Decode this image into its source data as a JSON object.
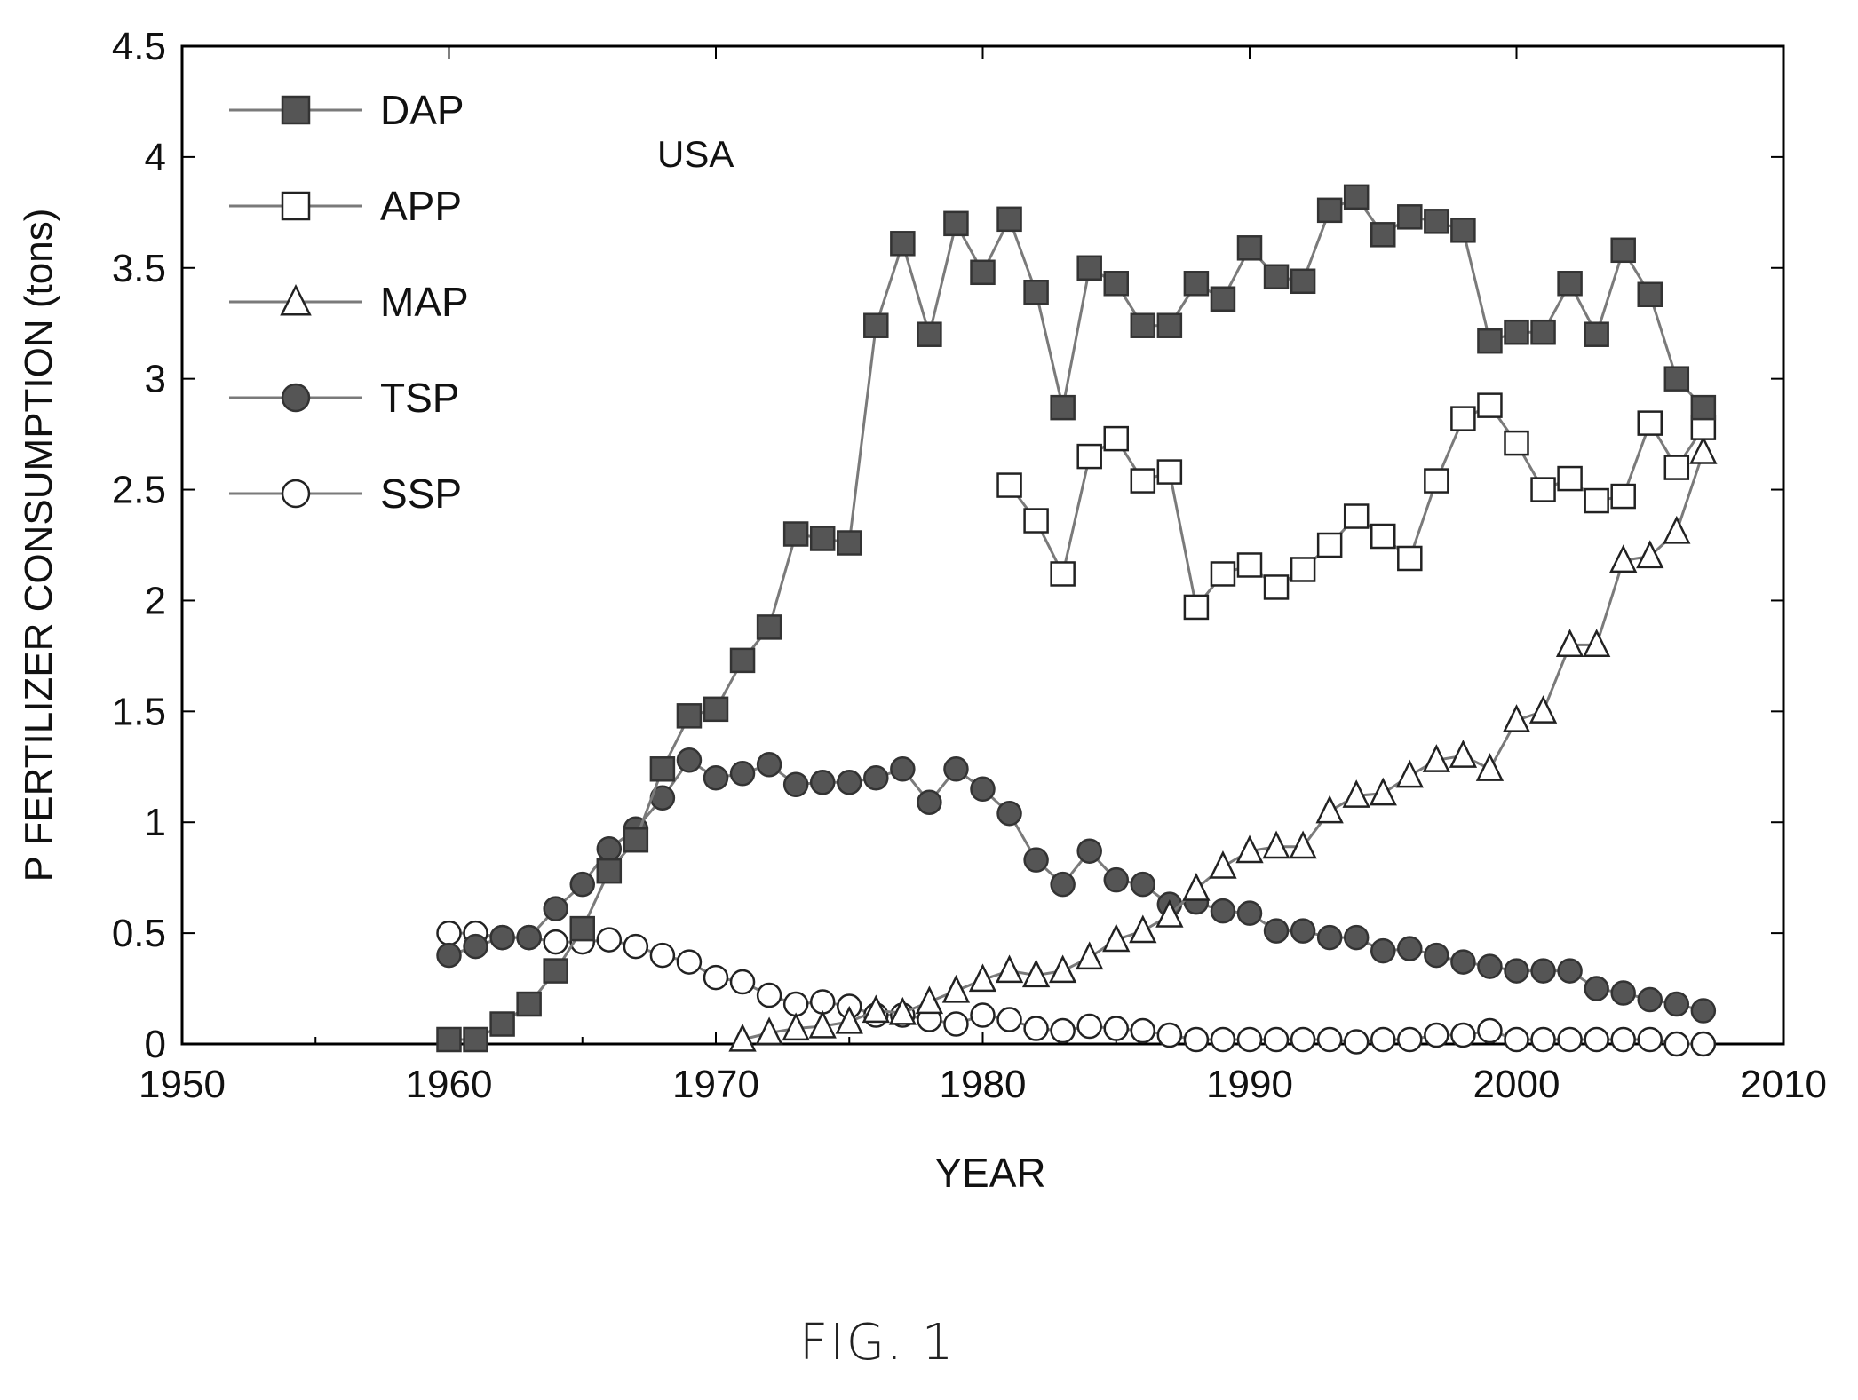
{
  "figure": {
    "caption": "FIG. 1"
  },
  "chart_data": {
    "type": "line",
    "annotation": "USA",
    "xlabel": "YEAR",
    "ylabel": "P FERTILIZER CONSUMPTION (tons)",
    "xlim": [
      1950,
      2010
    ],
    "ylim": [
      0,
      4.5
    ],
    "xticks": [
      1950,
      1960,
      1970,
      1980,
      1990,
      2000,
      2010
    ],
    "yticks": [
      0,
      0.5,
      1,
      1.5,
      2,
      2.5,
      3,
      3.5,
      4,
      4.5
    ],
    "ytick_labels": [
      "0",
      "0.5",
      "1",
      "1.5",
      "2",
      "2.5",
      "3",
      "3.5",
      "4",
      "4.5"
    ],
    "grid": false,
    "legend_position": "top-left",
    "colors": {
      "line": "#7a7a7a",
      "filled_marker": "#555555",
      "hollow_marker": "#ffffff",
      "axis": "#000000"
    },
    "series": [
      {
        "name": "DAP",
        "marker": "square",
        "filled": true,
        "x": [
          1960,
          1961,
          1962,
          1963,
          1964,
          1965,
          1966,
          1967,
          1968,
          1969,
          1970,
          1971,
          1972,
          1973,
          1974,
          1975,
          1976,
          1977,
          1978,
          1979,
          1980,
          1981,
          1982,
          1983,
          1984,
          1985,
          1986,
          1987,
          1988,
          1989,
          1990,
          1991,
          1992,
          1993,
          1994,
          1995,
          1996,
          1997,
          1998,
          1999,
          2000,
          2001,
          2002,
          2003,
          2004,
          2005,
          2006,
          2007
        ],
        "y": [
          0.02,
          0.02,
          0.09,
          0.18,
          0.33,
          0.52,
          0.78,
          0.92,
          1.24,
          1.48,
          1.51,
          1.73,
          1.88,
          2.3,
          2.28,
          2.26,
          3.24,
          3.61,
          3.2,
          3.7,
          3.48,
          3.72,
          3.39,
          2.87,
          3.5,
          3.43,
          3.24,
          3.24,
          3.43,
          3.36,
          3.59,
          3.46,
          3.44,
          3.76,
          3.82,
          3.65,
          3.73,
          3.71,
          3.67,
          3.17,
          3.21,
          3.21,
          3.43,
          3.2,
          3.58,
          3.38,
          3.0,
          2.87
        ]
      },
      {
        "name": "APP",
        "marker": "square",
        "filled": false,
        "x": [
          1981,
          1982,
          1983,
          1984,
          1985,
          1986,
          1987,
          1988,
          1989,
          1990,
          1991,
          1992,
          1993,
          1994,
          1995,
          1996,
          1997,
          1998,
          1999,
          2000,
          2001,
          2002,
          2003,
          2004,
          2005,
          2006,
          2007
        ],
        "y": [
          2.52,
          2.36,
          2.12,
          2.65,
          2.73,
          2.54,
          2.58,
          1.97,
          2.12,
          2.16,
          2.06,
          2.14,
          2.25,
          2.38,
          2.29,
          2.19,
          2.54,
          2.82,
          2.88,
          2.71,
          2.5,
          2.55,
          2.45,
          2.47,
          2.8,
          2.6,
          2.78
        ]
      },
      {
        "name": "MAP",
        "marker": "triangle",
        "filled": false,
        "x": [
          1971,
          1972,
          1973,
          1974,
          1975,
          1976,
          1977,
          1978,
          1979,
          1980,
          1981,
          1982,
          1983,
          1984,
          1985,
          1986,
          1987,
          1988,
          1989,
          1990,
          1991,
          1992,
          1993,
          1994,
          1995,
          1996,
          1997,
          1998,
          1999,
          2000,
          2001,
          2002,
          2003,
          2004,
          2005,
          2006,
          2007
        ],
        "y": [
          0.02,
          0.05,
          0.07,
          0.08,
          0.1,
          0.15,
          0.14,
          0.19,
          0.24,
          0.29,
          0.33,
          0.31,
          0.33,
          0.39,
          0.47,
          0.51,
          0.58,
          0.7,
          0.8,
          0.87,
          0.89,
          0.89,
          1.05,
          1.12,
          1.13,
          1.21,
          1.28,
          1.3,
          1.24,
          1.46,
          1.5,
          1.8,
          1.8,
          2.18,
          2.2,
          2.31,
          2.67
        ]
      },
      {
        "name": "TSP",
        "marker": "circle",
        "filled": true,
        "x": [
          1960,
          1961,
          1962,
          1963,
          1964,
          1965,
          1966,
          1967,
          1968,
          1969,
          1970,
          1971,
          1972,
          1973,
          1974,
          1975,
          1976,
          1977,
          1978,
          1979,
          1980,
          1981,
          1982,
          1983,
          1984,
          1985,
          1986,
          1987,
          1988,
          1989,
          1990,
          1991,
          1992,
          1993,
          1994,
          1995,
          1996,
          1997,
          1998,
          1999,
          2000,
          2001,
          2002,
          2003,
          2004,
          2005,
          2006,
          2007
        ],
        "y": [
          0.4,
          0.44,
          0.48,
          0.48,
          0.61,
          0.72,
          0.88,
          0.97,
          1.11,
          1.28,
          1.2,
          1.22,
          1.26,
          1.17,
          1.18,
          1.18,
          1.2,
          1.24,
          1.09,
          1.24,
          1.15,
          1.04,
          0.83,
          0.72,
          0.87,
          0.74,
          0.72,
          0.63,
          0.64,
          0.6,
          0.59,
          0.51,
          0.51,
          0.48,
          0.48,
          0.42,
          0.43,
          0.4,
          0.37,
          0.35,
          0.33,
          0.33,
          0.33,
          0.25,
          0.23,
          0.2,
          0.18,
          0.15
        ]
      },
      {
        "name": "SSP",
        "marker": "circle",
        "filled": false,
        "x": [
          1960,
          1961,
          1962,
          1963,
          1964,
          1965,
          1966,
          1967,
          1968,
          1969,
          1970,
          1971,
          1972,
          1973,
          1974,
          1975,
          1976,
          1977,
          1978,
          1979,
          1980,
          1981,
          1982,
          1983,
          1984,
          1985,
          1986,
          1987,
          1988,
          1989,
          1990,
          1991,
          1992,
          1993,
          1994,
          1995,
          1996,
          1997,
          1998,
          1999,
          2000,
          2001,
          2002,
          2003,
          2004,
          2005,
          2006,
          2007
        ],
        "y": [
          0.5,
          0.5,
          0.48,
          0.48,
          0.46,
          0.46,
          0.47,
          0.44,
          0.4,
          0.37,
          0.3,
          0.28,
          0.22,
          0.18,
          0.19,
          0.17,
          0.13,
          0.13,
          0.11,
          0.09,
          0.13,
          0.11,
          0.07,
          0.06,
          0.08,
          0.07,
          0.06,
          0.04,
          0.02,
          0.02,
          0.02,
          0.02,
          0.02,
          0.02,
          0.01,
          0.02,
          0.02,
          0.04,
          0.04,
          0.06,
          0.02,
          0.02,
          0.02,
          0.02,
          0.02,
          0.02,
          0.0,
          0.0
        ]
      }
    ]
  }
}
